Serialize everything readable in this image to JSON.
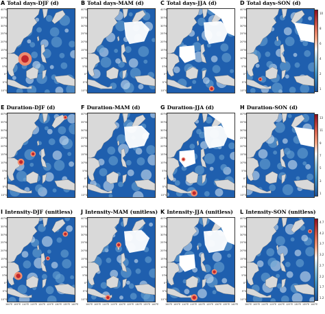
{
  "panels": [
    {
      "letter": "A",
      "title": "Total days-DJF (d)"
    },
    {
      "letter": "B",
      "title": "Total days-MAM (d)"
    },
    {
      "letter": "C",
      "title": "Total days-JJA (d)"
    },
    {
      "letter": "D",
      "title": "Total days-SON (d)"
    },
    {
      "letter": "E",
      "title": "Duration-DJF (d)"
    },
    {
      "letter": "F",
      "title": "Duration-MAM (d)"
    },
    {
      "letter": "G",
      "title": "Duration-JJA (d)"
    },
    {
      "letter": "H",
      "title": "Duration-SON (d)"
    },
    {
      "letter": "I",
      "title": "Intensity-DJF (unitless)"
    },
    {
      "letter": "J",
      "title": "Intensity-MAM (unitless)"
    },
    {
      "letter": "K",
      "title": "Intensity-JJA (unitless)"
    },
    {
      "letter": "L",
      "title": "Intensity-SON (unitless)"
    }
  ],
  "lat_ticks": [
    "40°N",
    "35°N",
    "30°N",
    "25°N",
    "20°N",
    "15°N",
    "10°N",
    "5°N",
    "0°",
    "5°S",
    "10°S"
  ],
  "lon_ticks": [
    "100°E",
    "105°E",
    "110°E",
    "115°E",
    "120°E",
    "125°E",
    "130°E",
    "135°E",
    "140°E"
  ],
  "colorbars": [
    {
      "ticks": [
        "10",
        "8",
        "6",
        "4",
        "2",
        "1"
      ]
    },
    {
      "ticks": [
        "13",
        "11",
        "9",
        "7",
        "5",
        "3",
        "1"
      ]
    },
    {
      "ticks": [
        "4.7",
        "4.2",
        "3.7",
        "3.2",
        "2.7",
        "2.2",
        "1.7",
        "1.2"
      ]
    }
  ],
  "colors": {
    "ocean_low": "#1f5fae",
    "ocean_mid": "#6fa8d6",
    "ocean_pale": "#dbe9f5",
    "land": "#d9d9d9",
    "missing": "#ffffff",
    "hot": "#c0272d",
    "warm": "#f08c6e"
  }
}
